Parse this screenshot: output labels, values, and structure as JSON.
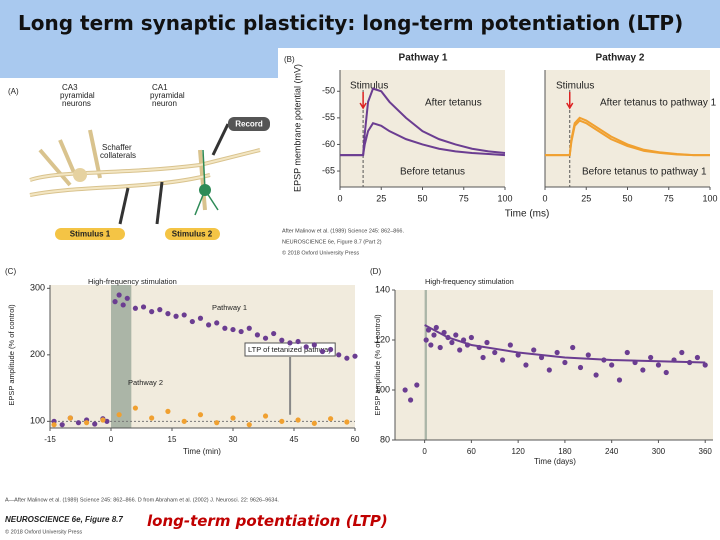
{
  "header": {
    "title": "Long term synaptic plasticity: long-term potentiation (LTP)"
  },
  "panel_a": {
    "label": "(A)",
    "ca3_label": [
      "CA3",
      "pyramidal",
      "neurons"
    ],
    "ca1_label": [
      "CA1",
      "pyramidal",
      "neuron"
    ],
    "schaffer_label": [
      "Schaffer",
      "collaterals"
    ],
    "record": "Record",
    "stimulus_1": "Stimulus 1",
    "stimulus_2": "Stimulus 2"
  },
  "panel_b": {
    "label": "(B)",
    "credits": [
      "After Malinow et al. (1989) Science 245: 862–866.",
      "NEUROSCIENCE 6e, Figure 8.7 (Part 2)",
      "© 2018 Oxford University Press"
    ]
  },
  "chart_data": [
    {
      "type": "line",
      "title": "Pathway 1",
      "y_label": "EPSP membrane potential (mV)",
      "x_label": "Time (ms)",
      "annotations": [
        "Stimulus"
      ],
      "stimulus_time": 14,
      "plot_color": "#f1ebdd",
      "x": [
        0,
        5,
        10,
        14,
        15,
        17,
        20,
        25,
        30,
        40,
        50,
        60,
        70,
        80,
        90,
        100
      ],
      "series": [
        {
          "name": "After tetanus",
          "color": "#6b3d91",
          "values": [
            -62,
            -62,
            -62,
            -62,
            -58,
            -52,
            -49.5,
            -50,
            -52,
            -55,
            -57.5,
            -59,
            -60,
            -60.8,
            -61.3,
            -61.6
          ]
        },
        {
          "name": "Before tetanus",
          "color": "#6b3d91",
          "values": [
            -62,
            -62,
            -62,
            -62,
            -60,
            -57.5,
            -56,
            -56.5,
            -57.5,
            -59,
            -60,
            -60.8,
            -61.3,
            -61.6,
            -61.8,
            -62
          ]
        }
      ],
      "xlim": [
        0,
        100
      ],
      "xticks": [
        0,
        25,
        50,
        75,
        100
      ],
      "ylim": [
        -68,
        -46
      ],
      "yticks": [
        -50,
        -55,
        -60,
        -65
      ]
    },
    {
      "type": "line",
      "title": "Pathway 2",
      "annotations": [
        "Stimulus"
      ],
      "stimulus_time": 15,
      "plot_color": "#f1ebdd",
      "x": [
        0,
        5,
        10,
        15,
        16,
        18,
        21,
        25,
        30,
        40,
        50,
        60,
        70,
        80,
        90,
        100
      ],
      "series": [
        {
          "name": "After tetanus to pathway 1",
          "color": "#f0a030",
          "values": [
            -62,
            -62,
            -62,
            -62,
            -59,
            -56,
            -55,
            -55.5,
            -56.5,
            -58.5,
            -60,
            -61,
            -61.5,
            -61.8,
            -62,
            -62
          ]
        },
        {
          "name": "Before tetanus to pathway 1",
          "color": "#f0a030",
          "values": [
            -62,
            -62,
            -62,
            -62,
            -59.5,
            -56.5,
            -55.5,
            -56,
            -57,
            -59,
            -60.3,
            -61.2,
            -61.6,
            -61.9,
            -62,
            -62
          ]
        }
      ],
      "xlim": [
        0,
        100
      ],
      "xticks": [
        0,
        25,
        50,
        75,
        100
      ],
      "ylim": [
        -68,
        -46
      ]
    },
    {
      "type": "scatter",
      "panel_label": "(C)",
      "y_label": "EPSP amplitude (% of control)",
      "x_label": "Time (min)",
      "annotations": [
        "High-frequency stimulation",
        "LTP of tetanized pathway"
      ],
      "plot_color": "#f1ebdd",
      "highlight": [
        0,
        5
      ],
      "highlight_color": "#9aa89a",
      "reference_line": 100,
      "series": [
        {
          "name": "Pathway 1",
          "color": "#6b3d91",
          "x": [
            -14,
            -12,
            -10,
            -8,
            -6,
            -4,
            -2,
            -1,
            1,
            2,
            3,
            4,
            6,
            8,
            10,
            12,
            14,
            16,
            18,
            20,
            22,
            24,
            26,
            28,
            30,
            32,
            34,
            36,
            38,
            40,
            42,
            44,
            46,
            48,
            50,
            52,
            54,
            56,
            58,
            60
          ],
          "values": [
            100,
            95,
            105,
            98,
            102,
            96,
            104,
            100,
            280,
            290,
            275,
            285,
            270,
            272,
            265,
            268,
            262,
            258,
            260,
            250,
            255,
            245,
            248,
            240,
            238,
            235,
            240,
            230,
            225,
            232,
            222,
            218,
            220,
            212,
            215,
            205,
            208,
            200,
            195,
            198
          ]
        },
        {
          "name": "Pathway 2",
          "color": "#f0a030",
          "x": [
            -14,
            -10,
            -6,
            -2,
            2,
            6,
            10,
            14,
            18,
            22,
            26,
            30,
            34,
            38,
            42,
            46,
            50,
            54,
            58
          ],
          "values": [
            95,
            105,
            98,
            102,
            110,
            120,
            105,
            115,
            100,
            110,
            98,
            105,
            95,
            108,
            100,
            102,
            97,
            104,
            99
          ]
        }
      ],
      "xlim": [
        -15,
        60
      ],
      "xticks": [
        -15,
        0,
        15,
        30,
        45,
        60
      ],
      "ylim": [
        90,
        305
      ],
      "yticks": [
        100,
        200,
        300
      ]
    },
    {
      "type": "scatter",
      "panel_label": "(D)",
      "y_label": "EPSP amplitude (% of control)",
      "x_label": "Time (days)",
      "annotations": [
        "High-frequency stimulation"
      ],
      "plot_color": "#f1ebdd",
      "highlight": [
        0,
        3
      ],
      "highlight_color": "#9aa89a",
      "series": [
        {
          "color": "#6b3d91",
          "x": [
            -25,
            -18,
            -10,
            2,
            5,
            8,
            12,
            15,
            20,
            25,
            30,
            35,
            40,
            45,
            50,
            55,
            60,
            70,
            75,
            80,
            90,
            100,
            110,
            120,
            130,
            140,
            150,
            160,
            170,
            180,
            190,
            200,
            210,
            220,
            230,
            240,
            250,
            260,
            270,
            280,
            290,
            300,
            310,
            320,
            330,
            340,
            350,
            360
          ],
          "values": [
            100,
            96,
            102,
            120,
            124,
            118,
            122,
            125,
            117,
            123,
            121,
            119,
            122,
            116,
            120,
            118,
            121,
            117,
            113,
            119,
            115,
            112,
            118,
            114,
            110,
            116,
            113,
            108,
            115,
            111,
            117,
            109,
            114,
            106,
            112,
            110,
            104,
            115,
            111,
            108,
            113,
            110,
            107,
            112,
            115,
            111,
            113,
            110
          ]
        },
        {
          "type": "line",
          "color": "#6b3d91",
          "x": [
            0,
            30,
            60,
            120,
            180,
            240,
            300,
            360
          ],
          "values": [
            126,
            121,
            118,
            115,
            113,
            112,
            111.5,
            111
          ]
        }
      ],
      "xlim": [
        -38,
        370
      ],
      "xticks": [
        0,
        60,
        120,
        180,
        240,
        300,
        360
      ],
      "ylim": [
        80,
        140
      ],
      "yticks": [
        80,
        100,
        120,
        140
      ]
    }
  ],
  "footer": {
    "credits": "A—After Malinow et al. (1989) Science 245: 862–866. D from Abraham et al. (2002) J. Neurosci. 22: 9626–9634.",
    "figure": "NEUROSCIENCE 6e, Figure 8.7",
    "copyright": "© 2018 Oxford University Press",
    "caption": "long-term potentiation (LTP)"
  }
}
